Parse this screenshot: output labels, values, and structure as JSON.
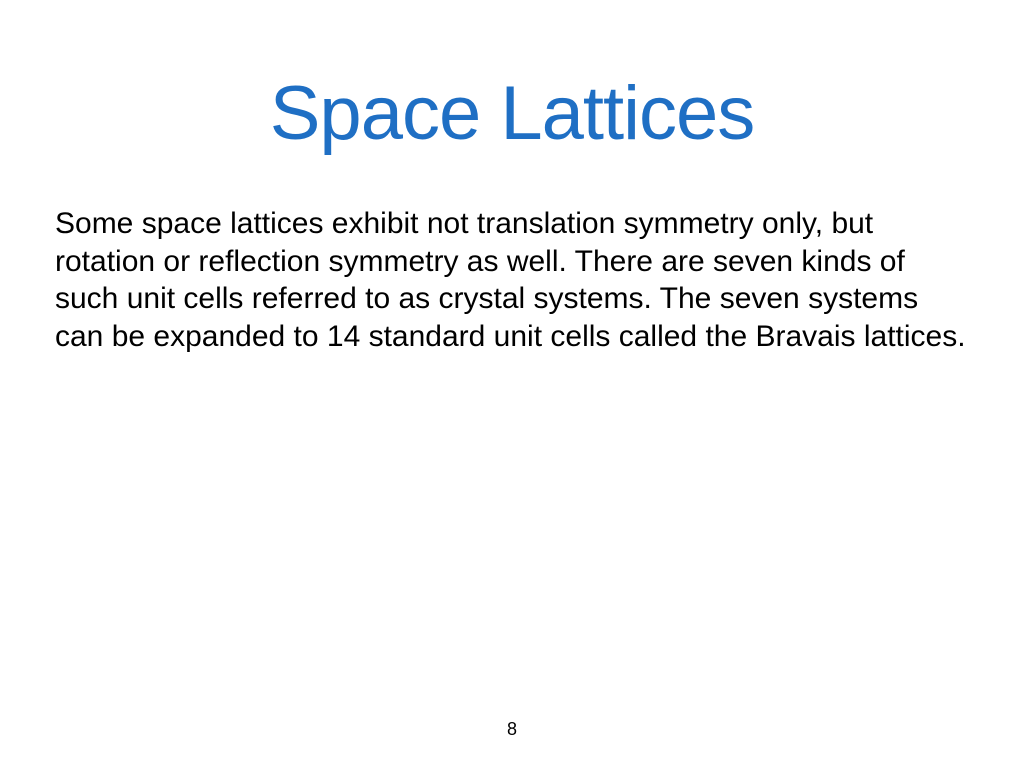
{
  "slide": {
    "title": "Space Lattices",
    "body": "Some space lattices exhibit not translation symmetry only, but rotation or reflection symmetry as well. There are seven kinds of such unit cells referred to as crystal systems. The seven systems can be expanded to 14 standard unit cells called the Bravais lattices.",
    "page_number": "8"
  },
  "styles": {
    "title_color": "#1f6fc4",
    "title_fontsize": 76,
    "body_color": "#000000",
    "body_fontsize": 30,
    "background_color": "#ffffff",
    "page_number_fontsize": 18,
    "font_family": "Arial"
  }
}
